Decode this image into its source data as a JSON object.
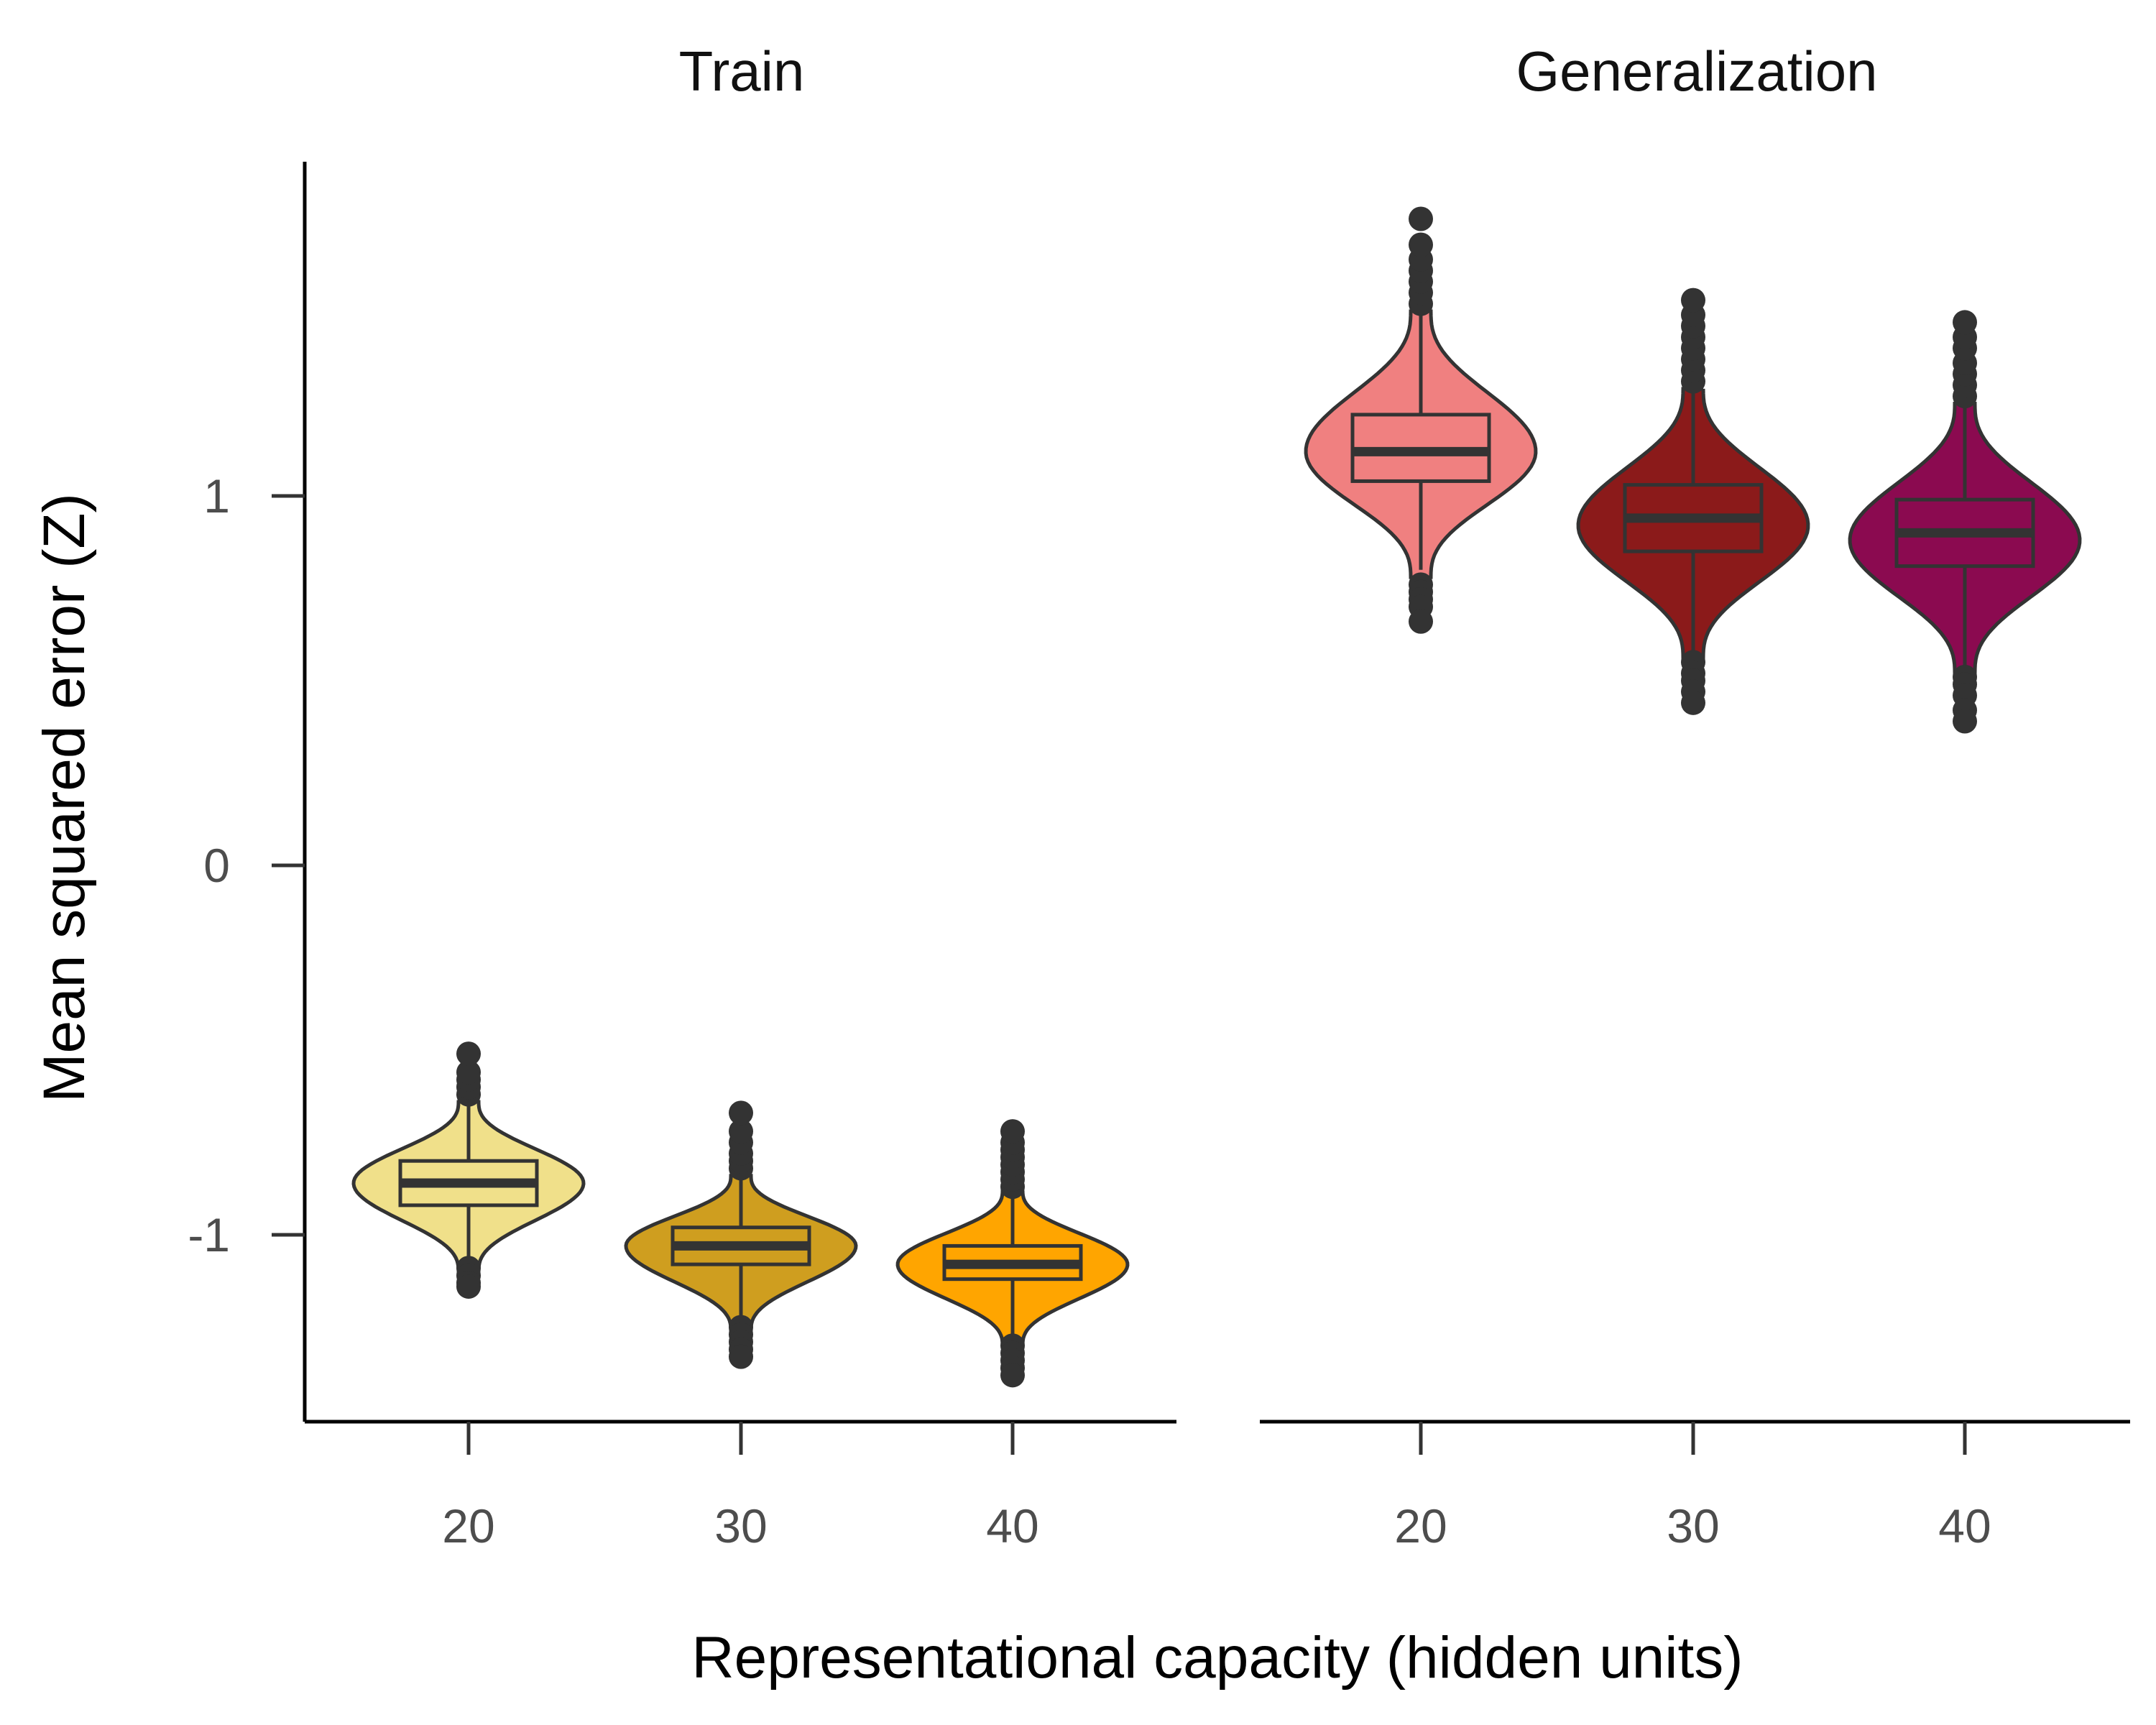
{
  "chart_data": {
    "type": "violin",
    "xlabel": "Representational capacity (hidden units)",
    "ylabel": "Mean squared error (Z)",
    "y_ticks": [
      -1,
      0,
      1
    ],
    "y_tick_labels": [
      "-1",
      "0",
      "1"
    ],
    "ylim": [
      -1.5,
      1.9
    ],
    "categories": [
      "20",
      "30",
      "40"
    ],
    "panels": [
      {
        "title": "Train",
        "groups": [
          {
            "category": "20",
            "color": "#F0E08A",
            "q1": -0.92,
            "median": -0.86,
            "q3": -0.8,
            "whisker_low": -1.08,
            "whisker_high": -0.64,
            "outliers_low": [
              -1.09,
              -1.11,
              -1.13,
              -1.14
            ],
            "outliers_high": [
              -0.62,
              -0.6,
              -0.58,
              -0.56,
              -0.51
            ],
            "violin_min": -1.1,
            "violin_max": -0.64,
            "density_peak": -0.86
          },
          {
            "category": "30",
            "color": "#CF9E1F",
            "q1": -1.08,
            "median": -1.03,
            "q3": -0.98,
            "whisker_low": -1.24,
            "whisker_high": -0.84,
            "outliers_low": [
              -1.25,
              -1.27,
              -1.29,
              -1.31,
              -1.33
            ],
            "outliers_high": [
              -0.82,
              -0.8,
              -0.78,
              -0.75,
              -0.72,
              -0.67
            ],
            "violin_min": -1.26,
            "violin_max": -0.84,
            "density_peak": -1.03
          },
          {
            "category": "40",
            "color": "#FFA500",
            "q1": -1.12,
            "median": -1.08,
            "q3": -1.03,
            "whisker_low": -1.29,
            "whisker_high": -0.89,
            "outliers_low": [
              -1.3,
              -1.32,
              -1.34,
              -1.36,
              -1.38
            ],
            "outliers_high": [
              -0.87,
              -0.85,
              -0.83,
              -0.81,
              -0.79,
              -0.77,
              -0.75,
              -0.72
            ],
            "violin_min": -1.3,
            "violin_max": -0.88,
            "density_peak": -1.08
          }
        ]
      },
      {
        "title": "Generalization",
        "groups": [
          {
            "category": "20",
            "color": "#F08080",
            "q1": 1.04,
            "median": 1.12,
            "q3": 1.22,
            "whisker_low": 0.8,
            "whisker_high": 1.49,
            "outliers_low": [
              0.76,
              0.74,
              0.72,
              0.7,
              0.66
            ],
            "outliers_high": [
              1.52,
              1.55,
              1.58,
              1.61,
              1.64,
              1.68,
              1.75
            ],
            "violin_min": 0.78,
            "violin_max": 1.5,
            "density_peak": 1.12
          },
          {
            "category": "30",
            "color": "#8B1A1A",
            "q1": 0.85,
            "median": 0.94,
            "q3": 1.03,
            "whisker_low": 0.57,
            "whisker_high": 1.28,
            "outliers_low": [
              0.55,
              0.52,
              0.5,
              0.47,
              0.44
            ],
            "outliers_high": [
              1.31,
              1.34,
              1.37,
              1.4,
              1.43,
              1.46,
              1.49,
              1.53
            ],
            "violin_min": 0.56,
            "violin_max": 1.29,
            "density_peak": 0.92
          },
          {
            "category": "40",
            "color": "#8B0A50",
            "q1": 0.81,
            "median": 0.9,
            "q3": 0.99,
            "whisker_low": 0.53,
            "whisker_high": 1.24,
            "outliers_low": [
              0.51,
              0.49,
              0.46,
              0.42,
              0.39
            ],
            "outliers_high": [
              1.27,
              1.3,
              1.33,
              1.36,
              1.4,
              1.43,
              1.47
            ],
            "violin_min": 0.52,
            "violin_max": 1.25,
            "density_peak": 0.88
          }
        ]
      }
    ],
    "box_stroke": "#333333",
    "grid": false,
    "legend": "none"
  }
}
